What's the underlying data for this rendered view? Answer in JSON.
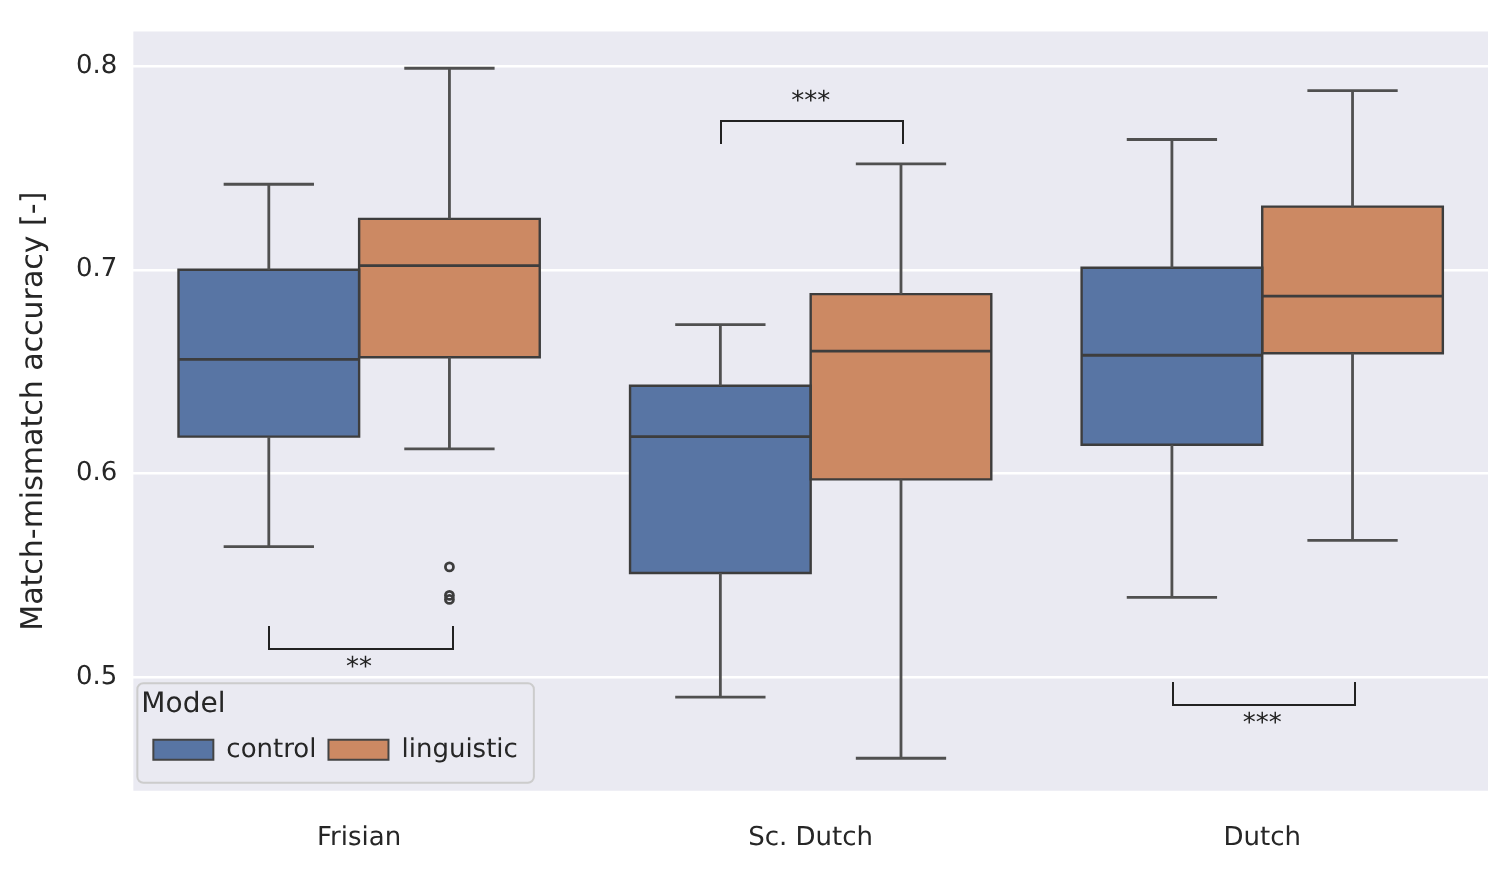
{
  "chart_data": {
    "type": "box",
    "ylabel": "Match-mismatch accuracy [-]",
    "legend_title": "Model",
    "categories": [
      "Frisian",
      "Sc. Dutch",
      "Dutch"
    ],
    "series": [
      {
        "name": "control",
        "color": "#5875a4",
        "boxes": [
          {
            "low": 0.564,
            "q1": 0.618,
            "median": 0.656,
            "q3": 0.7,
            "high": 0.742
          },
          {
            "low": 0.49,
            "q1": 0.551,
            "median": 0.618,
            "q3": 0.643,
            "high": 0.673
          },
          {
            "low": 0.539,
            "q1": 0.614,
            "median": 0.658,
            "q3": 0.701,
            "high": 0.764
          }
        ]
      },
      {
        "name": "linguistic",
        "color": "#cc8963",
        "boxes": [
          {
            "low": 0.612,
            "q1": 0.657,
            "median": 0.702,
            "q3": 0.725,
            "high": 0.799,
            "outliers": [
              0.554,
              0.54,
              0.538
            ]
          },
          {
            "low": 0.46,
            "q1": 0.597,
            "median": 0.66,
            "q3": 0.688,
            "high": 0.752
          },
          {
            "low": 0.567,
            "q1": 0.659,
            "median": 0.687,
            "q3": 0.731,
            "high": 0.788
          }
        ]
      }
    ],
    "ylim": [
      0.444,
      0.817
    ],
    "yticks": [
      0.5,
      0.6,
      0.7,
      0.8
    ],
    "grid": "y",
    "legend": "bottom left",
    "annotations": [
      "**",
      "***",
      "***"
    ]
  }
}
